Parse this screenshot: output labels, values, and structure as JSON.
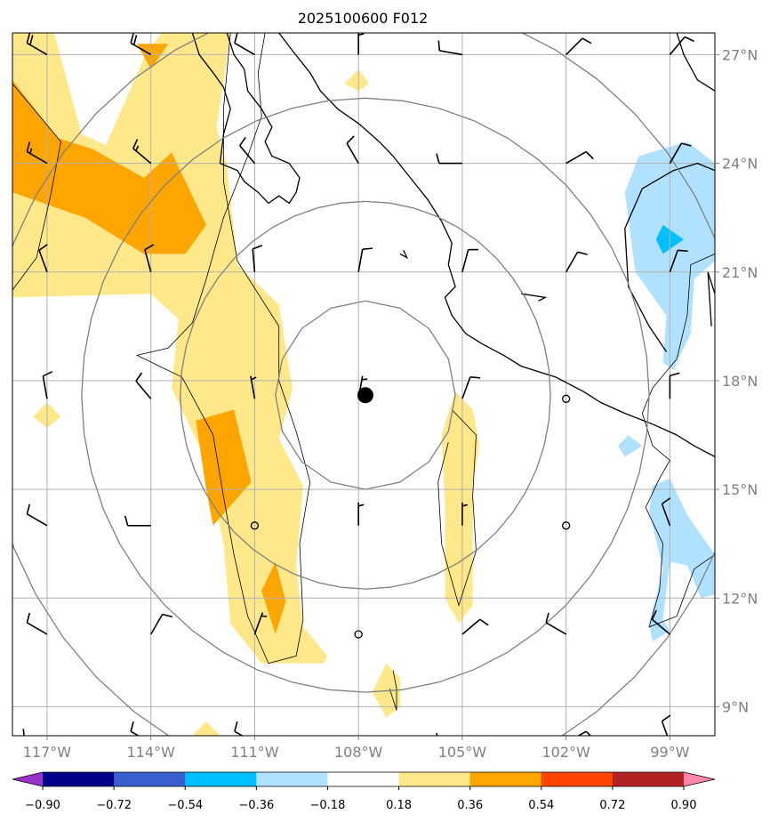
{
  "title": "2025100600 F012",
  "map": {
    "lon_range": [
      -118.0,
      -97.7
    ],
    "lat_range": [
      8.2,
      27.6
    ],
    "x_ticks": [
      -117,
      -114,
      -111,
      -108,
      -105,
      -102,
      -99
    ],
    "y_ticks": [
      9,
      12,
      15,
      18,
      21,
      24,
      27
    ],
    "x_tick_labels": [
      "117°W",
      "114°W",
      "111°W",
      "108°W",
      "105°W",
      "102°W",
      "99°W"
    ],
    "y_tick_labels": [
      "9°N",
      "12°N",
      "15°N",
      "18°N",
      "21°N",
      "24°N",
      "27°N"
    ],
    "storm_center": {
      "lon": -107.8,
      "lat": 17.6
    },
    "range_ring_radii_deg": [
      2.6,
      5.35,
      8.2,
      11.0
    ]
  },
  "colorbar": {
    "boundaries": [
      -0.9,
      -0.72,
      -0.54,
      -0.36,
      -0.18,
      0.18,
      0.36,
      0.54,
      0.72,
      0.9
    ],
    "labels": [
      "−0.90",
      "−0.72",
      "−0.54",
      "−0.36",
      "−0.18",
      "0.18",
      "0.36",
      "0.54",
      "0.72",
      "0.90"
    ],
    "colors": [
      "#9932cc",
      "#00008b",
      "#3a5fcd",
      "#00bfff",
      "#b0e2ff",
      "#ffffff",
      "#ffe88a",
      "#ffa500",
      "#ff4500",
      "#b22222",
      "#ff88aa"
    ]
  },
  "wind_barbs": [
    {
      "lon": -117,
      "lat": 27,
      "dir": 300,
      "spd": 20
    },
    {
      "lon": -114,
      "lat": 27,
      "dir": 300,
      "spd": 20
    },
    {
      "lon": -111,
      "lat": 27,
      "dir": 300,
      "spd": 10
    },
    {
      "lon": -108,
      "lat": 27,
      "dir": 0,
      "spd": 5
    },
    {
      "lon": -105,
      "lat": 27,
      "dir": 280,
      "spd": 10
    },
    {
      "lon": -102,
      "lat": 27,
      "dir": 45,
      "spd": 10
    },
    {
      "lon": -99,
      "lat": 27,
      "dir": 40,
      "spd": 10
    },
    {
      "lon": -117,
      "lat": 24,
      "dir": 300,
      "spd": 15
    },
    {
      "lon": -114,
      "lat": 24,
      "dir": 310,
      "spd": 15
    },
    {
      "lon": -111,
      "lat": 24,
      "dir": 320,
      "spd": 10
    },
    {
      "lon": -108,
      "lat": 24,
      "dir": 330,
      "spd": 10
    },
    {
      "lon": -105,
      "lat": 24,
      "dir": 270,
      "spd": 10
    },
    {
      "lon": -102,
      "lat": 24,
      "dir": 60,
      "spd": 10
    },
    {
      "lon": -99,
      "lat": 24,
      "dir": 30,
      "spd": 10
    },
    {
      "lon": -117,
      "lat": 21,
      "dir": 340,
      "spd": 10
    },
    {
      "lon": -114,
      "lat": 21,
      "dir": 345,
      "spd": 10
    },
    {
      "lon": -111,
      "lat": 21,
      "dir": 355,
      "spd": 10
    },
    {
      "lon": -108,
      "lat": 21,
      "dir": 10,
      "spd": 10
    },
    {
      "lon": -105,
      "lat": 21,
      "dir": 15,
      "spd": 10
    },
    {
      "lon": -102,
      "lat": 21,
      "dir": 30,
      "spd": 10
    },
    {
      "lon": -99,
      "lat": 21,
      "dir": 20,
      "spd": 10
    },
    {
      "lon": -117,
      "lat": 17.5,
      "dir": 350,
      "spd": 10
    },
    {
      "lon": -114,
      "lat": 17.5,
      "dir": 320,
      "spd": 10
    },
    {
      "lon": -111,
      "lat": 17.5,
      "dir": 350,
      "spd": 5
    },
    {
      "lon": -108,
      "lat": 17.5,
      "dir": 10,
      "spd": 5
    },
    {
      "lon": -105,
      "lat": 17.5,
      "dir": 20,
      "spd": 10
    },
    {
      "lon": -102,
      "lat": 17.5,
      "dir": 0,
      "spd": 0
    },
    {
      "lon": -99,
      "lat": 17.5,
      "dir": 0,
      "spd": 10
    },
    {
      "lon": -117,
      "lat": 14,
      "dir": 300,
      "spd": 10
    },
    {
      "lon": -114,
      "lat": 14,
      "dir": 270,
      "spd": 10
    },
    {
      "lon": -111,
      "lat": 14,
      "dir": 0,
      "spd": 0
    },
    {
      "lon": -108,
      "lat": 14,
      "dir": 0,
      "spd": 5
    },
    {
      "lon": -105,
      "lat": 14,
      "dir": 0,
      "spd": 5
    },
    {
      "lon": -102,
      "lat": 14,
      "dir": 0,
      "spd": 0
    },
    {
      "lon": -99,
      "lat": 14,
      "dir": 340,
      "spd": 10
    },
    {
      "lon": -117,
      "lat": 11,
      "dir": 300,
      "spd": 10
    },
    {
      "lon": -114,
      "lat": 11,
      "dir": 30,
      "spd": 10
    },
    {
      "lon": -111,
      "lat": 11,
      "dir": 20,
      "spd": 5
    },
    {
      "lon": -108,
      "lat": 11,
      "dir": 0,
      "spd": 0
    },
    {
      "lon": -105,
      "lat": 11,
      "dir": 50,
      "spd": 10
    },
    {
      "lon": -102,
      "lat": 11,
      "dir": 300,
      "spd": 10
    },
    {
      "lon": -99,
      "lat": 11,
      "dir": 310,
      "spd": 10
    },
    {
      "lon": -117,
      "lat": 8,
      "dir": 280,
      "spd": 10
    },
    {
      "lon": -114,
      "lat": 8,
      "dir": 300,
      "spd": 10
    },
    {
      "lon": -111,
      "lat": 8,
      "dir": 300,
      "spd": 10
    },
    {
      "lon": -108,
      "lat": 8,
      "dir": 260,
      "spd": 10
    },
    {
      "lon": -105,
      "lat": 8,
      "dir": 270,
      "spd": 10
    },
    {
      "lon": -102,
      "lat": 8,
      "dir": 60,
      "spd": 10
    },
    {
      "lon": -99,
      "lat": 8,
      "dir": 340,
      "spd": 10
    }
  ],
  "shading": [
    {
      "level": 0.18,
      "poly": [
        [
          -118,
          27.6
        ],
        [
          -116.8,
          27.6
        ],
        [
          -116.0,
          24.8
        ],
        [
          -115.3,
          24.5
        ],
        [
          -114.2,
          26.9
        ],
        [
          -113.7,
          27.6
        ],
        [
          -111.7,
          27.6
        ],
        [
          -112.1,
          25.0
        ],
        [
          -111.8,
          23.9
        ],
        [
          -111.5,
          21.2
        ],
        [
          -110.3,
          20.1
        ],
        [
          -110.0,
          18.3
        ],
        [
          -109.9,
          17.8
        ],
        [
          -110.3,
          16.4
        ],
        [
          -109.6,
          15.1
        ],
        [
          -109.8,
          12.9
        ],
        [
          -109.6,
          11.2
        ],
        [
          -108.9,
          10.4
        ],
        [
          -109.0,
          10.2
        ],
        [
          -110.8,
          10.2
        ],
        [
          -111.7,
          11.3
        ],
        [
          -111.9,
          13.5
        ],
        [
          -112.4,
          15.8
        ],
        [
          -113.4,
          17.8
        ],
        [
          -113.2,
          19.7
        ],
        [
          -114.0,
          20.4
        ],
        [
          -118,
          20.3
        ]
      ]
    },
    {
      "level": 0.36,
      "poly": [
        [
          -118,
          26.3
        ],
        [
          -116.7,
          24.7
        ],
        [
          -115.7,
          24.4
        ],
        [
          -114.2,
          23.6
        ],
        [
          -113.4,
          24.3
        ],
        [
          -112.4,
          22.3
        ],
        [
          -113.0,
          21.5
        ],
        [
          -114.2,
          21.5
        ],
        [
          -115.9,
          22.5
        ],
        [
          -118,
          23.2
        ]
      ]
    },
    {
      "level": 0.36,
      "poly": [
        [
          -114.4,
          27.3
        ],
        [
          -114.0,
          26.6
        ],
        [
          -113.5,
          27.3
        ]
      ]
    },
    {
      "level": 0.36,
      "poly": [
        [
          -112.7,
          16.9
        ],
        [
          -111.6,
          17.2
        ],
        [
          -111.1,
          15.2
        ],
        [
          -112.2,
          14.0
        ],
        [
          -112.4,
          15.0
        ]
      ]
    },
    {
      "level": 0.36,
      "poly": [
        [
          -110.4,
          13.0
        ],
        [
          -110.1,
          11.9
        ],
        [
          -110.4,
          11.0
        ],
        [
          -110.8,
          12.2
        ]
      ]
    },
    {
      "level": 0.36,
      "poly": [
        [
          -105.2,
          16.8
        ],
        [
          -104.9,
          16.0
        ],
        [
          -105.1,
          15.3
        ],
        [
          -105.3,
          16.2
        ]
      ]
    },
    {
      "level": 0.18,
      "poly": [
        [
          -105.2,
          17.7
        ],
        [
          -104.7,
          17.2
        ],
        [
          -104.5,
          16.2
        ],
        [
          -104.7,
          15.2
        ],
        [
          -104.7,
          12.8
        ],
        [
          -104.7,
          11.8
        ],
        [
          -105.1,
          11.3
        ],
        [
          -105.5,
          12.0
        ],
        [
          -105.5,
          14.5
        ],
        [
          -105.6,
          16.5
        ]
      ]
    },
    {
      "level": 0.18,
      "poly": [
        [
          -107.2,
          10.2
        ],
        [
          -106.8,
          9.8
        ],
        [
          -106.8,
          9.0
        ],
        [
          -107.2,
          8.7
        ],
        [
          -107.6,
          9.4
        ]
      ]
    },
    {
      "level": 0.18,
      "poly": [
        [
          -108.0,
          26.6
        ],
        [
          -107.7,
          26.2
        ],
        [
          -108.0,
          26.0
        ],
        [
          -108.4,
          26.2
        ]
      ]
    },
    {
      "level": 0.18,
      "poly": [
        [
          -117.0,
          17.4
        ],
        [
          -116.6,
          17.0
        ],
        [
          -117.0,
          16.7
        ],
        [
          -117.4,
          17.0
        ]
      ]
    },
    {
      "level": 0.18,
      "poly": [
        [
          -112.8,
          8.2
        ],
        [
          -112.0,
          8.2
        ],
        [
          -112.4,
          8.6
        ]
      ]
    },
    {
      "level": -0.18,
      "poly": [
        [
          -97.7,
          24.0
        ],
        [
          -98.5,
          24.6
        ],
        [
          -99.9,
          24.2
        ],
        [
          -100.3,
          23.2
        ],
        [
          -100.0,
          21.0
        ],
        [
          -99.1,
          19.8
        ],
        [
          -99.2,
          18.5
        ],
        [
          -98.9,
          18.3
        ],
        [
          -98.4,
          19.3
        ],
        [
          -98.3,
          20.8
        ],
        [
          -97.7,
          21.3
        ]
      ]
    },
    {
      "level": -0.36,
      "poly": [
        [
          -99.2,
          22.3
        ],
        [
          -98.6,
          21.9
        ],
        [
          -99.2,
          21.5
        ],
        [
          -99.4,
          21.9
        ]
      ]
    },
    {
      "level": -0.18,
      "poly": [
        [
          -99.5,
          15.1
        ],
        [
          -99.0,
          15.3
        ],
        [
          -98.5,
          14.3
        ],
        [
          -97.7,
          13.2
        ],
        [
          -97.7,
          12.1
        ],
        [
          -98.1,
          12.0
        ],
        [
          -98.5,
          12.9
        ],
        [
          -99.0,
          13.0
        ],
        [
          -99.2,
          11.4
        ],
        [
          -99.0,
          11.1
        ],
        [
          -99.5,
          10.8
        ],
        [
          -99.6,
          11.3
        ],
        [
          -99.2,
          12.8
        ],
        [
          -99.6,
          14.4
        ]
      ]
    },
    {
      "level": -0.18,
      "poly": [
        [
          -100.2,
          16.5
        ],
        [
          -99.8,
          16.2
        ],
        [
          -100.3,
          15.9
        ],
        [
          -100.5,
          16.2
        ]
      ]
    }
  ],
  "coast": [
    [
      [
        -112.8,
        27.6
      ],
      [
        -112.6,
        27.0
      ],
      [
        -112.2,
        26.5
      ],
      [
        -111.9,
        26.1
      ],
      [
        -111.7,
        25.5
      ],
      [
        -111.9,
        24.8
      ],
      [
        -112.0,
        24.0
      ],
      [
        -111.5,
        23.8
      ],
      [
        -111.3,
        23.5
      ],
      [
        -110.9,
        23.2
      ],
      [
        -110.6,
        22.9
      ],
      [
        -110.3,
        23.1
      ],
      [
        -110.0,
        22.9
      ],
      [
        -109.8,
        23.2
      ],
      [
        -109.7,
        23.6
      ],
      [
        -110.0,
        24.0
      ],
      [
        -110.5,
        24.2
      ],
      [
        -110.7,
        24.6
      ],
      [
        -110.5,
        25.0
      ],
      [
        -110.8,
        25.5
      ],
      [
        -111.2,
        26.0
      ],
      [
        -111.3,
        26.6
      ],
      [
        -111.6,
        27.0
      ],
      [
        -111.8,
        27.6
      ]
    ],
    [
      [
        -110.3,
        27.6
      ],
      [
        -109.9,
        27.1
      ],
      [
        -109.4,
        26.5
      ],
      [
        -109.1,
        26.0
      ],
      [
        -108.6,
        25.5
      ],
      [
        -108.0,
        25.1
      ],
      [
        -107.4,
        24.6
      ],
      [
        -107.0,
        24.2
      ],
      [
        -106.5,
        23.6
      ],
      [
        -106.0,
        23.0
      ],
      [
        -105.6,
        22.4
      ],
      [
        -105.3,
        21.8
      ],
      [
        -105.4,
        21.2
      ],
      [
        -105.2,
        20.6
      ],
      [
        -105.5,
        20.3
      ],
      [
        -105.3,
        19.8
      ],
      [
        -104.9,
        19.3
      ],
      [
        -104.4,
        19.0
      ],
      [
        -103.8,
        18.7
      ],
      [
        -103.3,
        18.4
      ],
      [
        -102.3,
        18.1
      ],
      [
        -101.5,
        17.7
      ],
      [
        -101.0,
        17.4
      ],
      [
        -100.3,
        17.1
      ],
      [
        -99.5,
        16.8
      ],
      [
        -98.8,
        16.5
      ],
      [
        -98.3,
        16.2
      ],
      [
        -97.7,
        15.9
      ]
    ],
    [
      [
        -106.8,
        21.5
      ],
      [
        -106.6,
        21.4
      ],
      [
        -106.7,
        21.6
      ]
    ],
    [
      [
        -103.3,
        20.4
      ],
      [
        -102.6,
        20.3
      ],
      [
        -102.8,
        20.2
      ]
    ],
    [
      [
        -98.8,
        27.6
      ],
      [
        -98.6,
        27.0
      ],
      [
        -98.2,
        26.3
      ],
      [
        -97.7,
        26.0
      ]
    ],
    [
      [
        -97.7,
        23.8
      ],
      [
        -98.2,
        24.0
      ],
      [
        -98.9,
        23.8
      ],
      [
        -99.8,
        23.3
      ],
      [
        -100.3,
        22.2
      ],
      [
        -100.2,
        20.6
      ],
      [
        -99.6,
        19.5
      ],
      [
        -99.1,
        18.8
      ]
    ],
    [
      [
        -97.7,
        20.4
      ],
      [
        -97.9,
        21.0
      ],
      [
        -97.8,
        19.5
      ]
    ]
  ],
  "border": [
    [
      [
        -110.7,
        27.6
      ],
      [
        -110.9,
        26.5
      ],
      [
        -110.8,
        25.3
      ],
      [
        -111.2,
        24.2
      ],
      [
        -111.9,
        22.5
      ],
      [
        -112.4,
        20.8
      ],
      [
        -112.8,
        19.6
      ],
      [
        -113.5,
        18.9
      ],
      [
        -114.4,
        18.7
      ],
      [
        -113.1,
        18.1
      ],
      [
        -112.2,
        16.5
      ],
      [
        -111.9,
        14.8
      ],
      [
        -111.6,
        13.2
      ],
      [
        -111.2,
        11.5
      ],
      [
        -110.6,
        10.2
      ],
      [
        -109.8,
        10.4
      ],
      [
        -109.6,
        11.4
      ],
      [
        -109.7,
        13.5
      ],
      [
        -109.4,
        15.2
      ],
      [
        -109.8,
        16.6
      ],
      [
        -110.3,
        18.0
      ],
      [
        -110.3,
        19.5
      ],
      [
        -111.5,
        21.3
      ],
      [
        -111.9,
        23.5
      ],
      [
        -111.9,
        25.5
      ],
      [
        -111.7,
        27.6
      ]
    ],
    [
      [
        -118,
        26.2
      ],
      [
        -116.6,
        24.6
      ],
      [
        -116.9,
        23.1
      ],
      [
        -117.3,
        21.4
      ],
      [
        -118,
        20.5
      ]
    ],
    [
      [
        -105.3,
        17.2
      ],
      [
        -104.6,
        16.5
      ],
      [
        -104.7,
        14.8
      ],
      [
        -104.6,
        13.3
      ],
      [
        -104.9,
        12.4
      ],
      [
        -105.1,
        11.8
      ],
      [
        -105.4,
        12.8
      ],
      [
        -105.6,
        13.5
      ],
      [
        -105.7,
        15.2
      ],
      [
        -105.4,
        16.3
      ]
    ],
    [
      [
        -107.0,
        10.0
      ],
      [
        -106.9,
        9.5
      ],
      [
        -106.9,
        8.9
      ],
      [
        -107.1,
        9.5
      ]
    ],
    [
      [
        -97.7,
        21.5
      ],
      [
        -98.4,
        21.2
      ],
      [
        -98.5,
        19.8
      ],
      [
        -98.8,
        18.6
      ],
      [
        -99.5,
        17.8
      ],
      [
        -99.8,
        17.1
      ],
      [
        -99.5,
        16.2
      ],
      [
        -99.0,
        15.8
      ],
      [
        -99.3,
        15.3
      ],
      [
        -99.7,
        14.5
      ],
      [
        -99.2,
        13.5
      ],
      [
        -99.3,
        12.2
      ],
      [
        -99.6,
        11.2
      ],
      [
        -98.8,
        11.5
      ],
      [
        -98.3,
        12.8
      ],
      [
        -97.7,
        13.2
      ]
    ]
  ]
}
